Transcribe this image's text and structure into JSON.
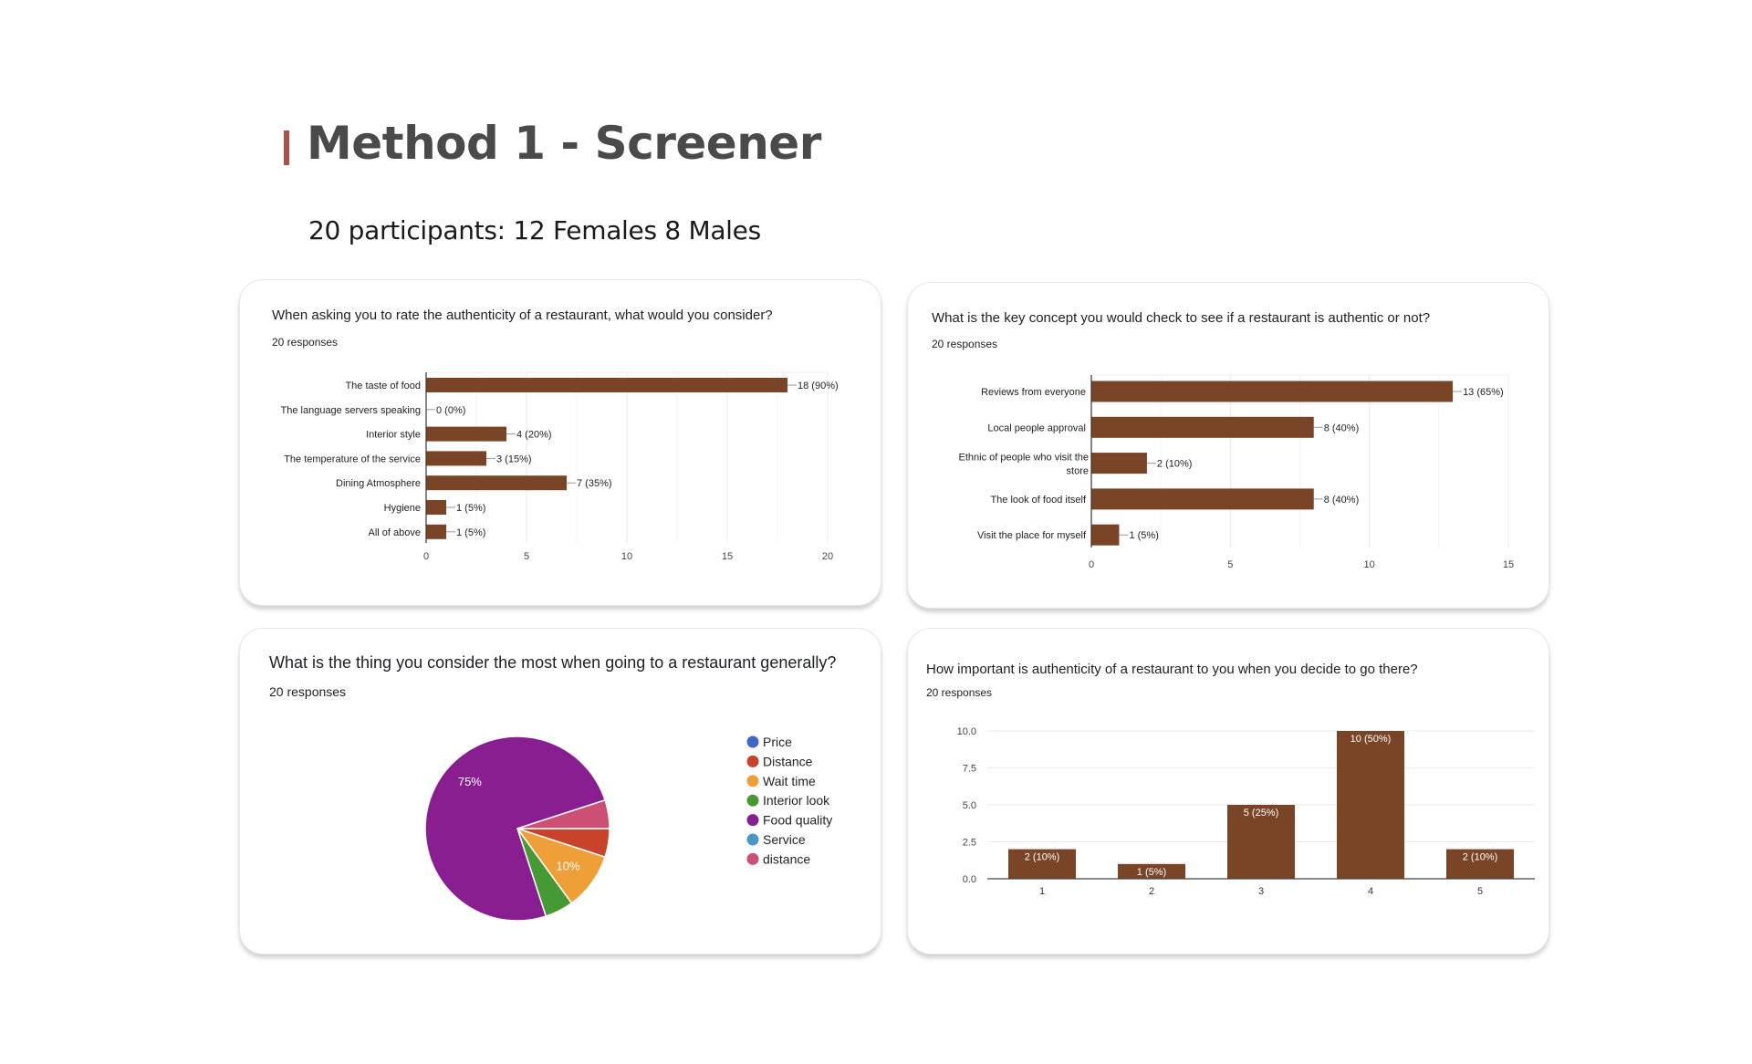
{
  "page": {
    "title": "Method 1 - Screener",
    "subtitle": "20 participants: 12 Females 8 Males",
    "accent_color": "#a8524a"
  },
  "chart_data": [
    {
      "type": "bar",
      "orientation": "horizontal",
      "title": "When asking you to rate the authenticity of a restaurant, what would you consider?",
      "responses": "20 responses",
      "categories": [
        "The taste of food",
        "The language servers speaking",
        "Interior style",
        "The temperature of the service",
        "Dining Atmosphere",
        "Hygiene",
        "All of above"
      ],
      "values": [
        18,
        0,
        4,
        3,
        7,
        1,
        1
      ],
      "labels": [
        "18 (90%)",
        "0 (0%)",
        "4 (20%)",
        "3 (15%)",
        "7 (35%)",
        "1 (5%)",
        "1 (5%)"
      ],
      "xlim": [
        0,
        20
      ],
      "ticks": [
        "0",
        "5",
        "10",
        "15",
        "20"
      ],
      "color": "#7a4427",
      "grid": true
    },
    {
      "type": "bar",
      "orientation": "horizontal",
      "title": "What is the key concept you would check to see if a restaurant is authentic or not?",
      "responses": "20 responses",
      "categories": [
        "Reviews from everyone",
        "Local people approval",
        "Ethnic of people who visit the store",
        "The look of food itself",
        "Visit the place for myself"
      ],
      "values": [
        13,
        8,
        2,
        8,
        1
      ],
      "labels": [
        "13 (65%)",
        "8 (40%)",
        "2 (10%)",
        "8 (40%)",
        "1 (5%)"
      ],
      "xlim": [
        0,
        15
      ],
      "ticks": [
        "0",
        "5",
        "10",
        "15"
      ],
      "color": "#7a4427",
      "grid": true
    },
    {
      "type": "pie",
      "title": "What is the thing you consider the most when going to a restaurant generally?",
      "responses": "20 responses",
      "categories": [
        "Price",
        "Distance",
        "Wait time",
        "Interior look",
        "Food quality",
        "Service",
        "distance"
      ],
      "values": [
        0,
        1,
        2,
        1,
        15,
        0,
        1
      ],
      "slice_labels": [
        "",
        "",
        "10%",
        "",
        "75%",
        "",
        ""
      ],
      "colors": [
        "#3f66cc",
        "#c9432a",
        "#ef9f38",
        "#469a33",
        "#891e91",
        "#4599c4",
        "#cc4f74"
      ],
      "legend": "right"
    },
    {
      "type": "bar",
      "orientation": "vertical",
      "title": "How important is authenticity of a restaurant to you when you decide to go there?",
      "responses": "20 responses",
      "categories": [
        "1",
        "2",
        "3",
        "4",
        "5"
      ],
      "values": [
        2,
        1,
        5,
        10,
        2
      ],
      "labels": [
        "2 (10%)",
        "1 (5%)",
        "5 (25%)",
        "10 (50%)",
        "2 (10%)"
      ],
      "ylim": [
        0,
        10
      ],
      "ticks": [
        "0.0",
        "2.5",
        "5.0",
        "7.5",
        "10.0"
      ],
      "color": "#7a4427",
      "grid": true
    }
  ]
}
